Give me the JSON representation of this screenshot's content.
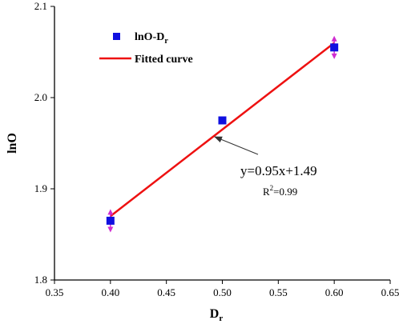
{
  "chart_data": {
    "type": "scatter",
    "xlabel_main": "D",
    "xlabel_sub": "r",
    "ylabel": "lnO",
    "xlim": [
      0.35,
      0.65
    ],
    "ylim": [
      1.8,
      2.1
    ],
    "xticks": [
      "0.35",
      "0.40",
      "0.45",
      "0.50",
      "0.55",
      "0.60",
      "0.65"
    ],
    "yticks": [
      "1.8",
      "1.9",
      "2.0",
      "2.1"
    ],
    "series": [
      {
        "name_main": "lnO-D",
        "name_sub": "r",
        "marker": "square",
        "color": "#1010e0",
        "x": [
          0.4,
          0.5,
          0.6
        ],
        "y": [
          1.865,
          1.975,
          2.055
        ],
        "error": [
          0.011,
          0,
          0.011
        ]
      }
    ],
    "fit": {
      "name": "Fitted curve",
      "color": "#ee1111",
      "x": [
        0.4,
        0.6
      ],
      "y": [
        1.87,
        2.06
      ]
    },
    "error_bar_color": "#d02dd0",
    "annotation": {
      "equation": "y=0.95x+1.49",
      "r2_main": "R",
      "r2_sup": "2",
      "r2_value": "=0.99",
      "arrow_target": [
        0.5,
        1.97
      ]
    }
  }
}
